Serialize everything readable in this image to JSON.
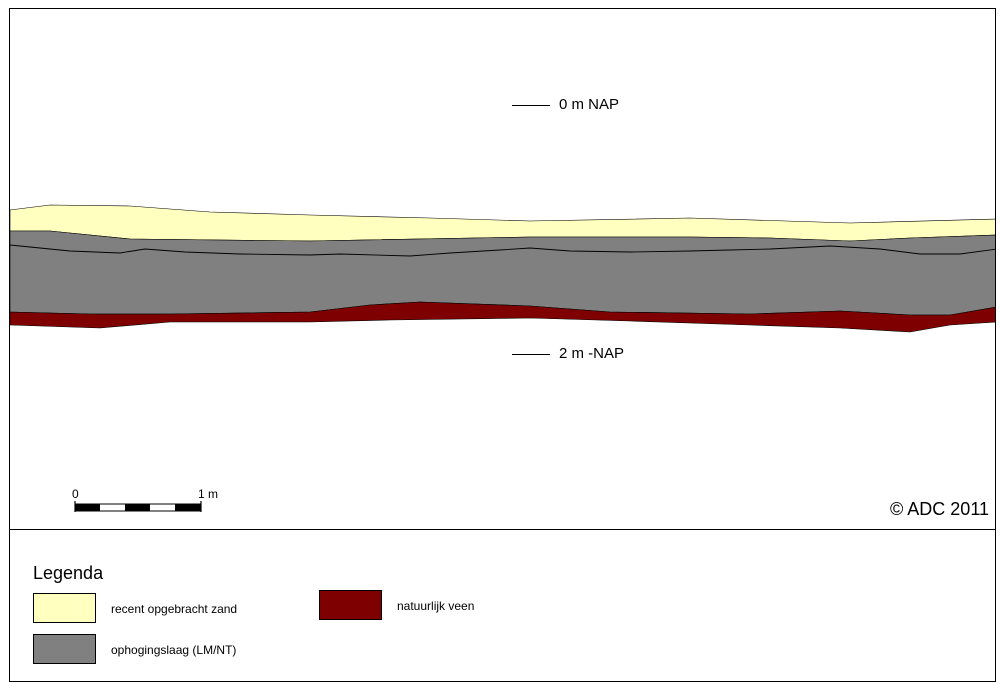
{
  "levels": {
    "top_label": "0 m NAP",
    "bottom_label": "2 m -NAP"
  },
  "scale_bar": {
    "start_label": "0",
    "end_label": "1 m"
  },
  "copyright": "© ADC 2011",
  "legend": {
    "title": "Legenda",
    "items": [
      {
        "label": "recent opgebracht zand",
        "color": "#ffffc0"
      },
      {
        "label": "natuurlijk veen",
        "color": "#7f0000"
      },
      {
        "label": "ophogingslaag (LM/NT)",
        "color": "#808080"
      }
    ]
  },
  "colors": {
    "sand": "#ffffc0",
    "fill": "#808080",
    "peat": "#7f0000",
    "line": "#000000"
  }
}
